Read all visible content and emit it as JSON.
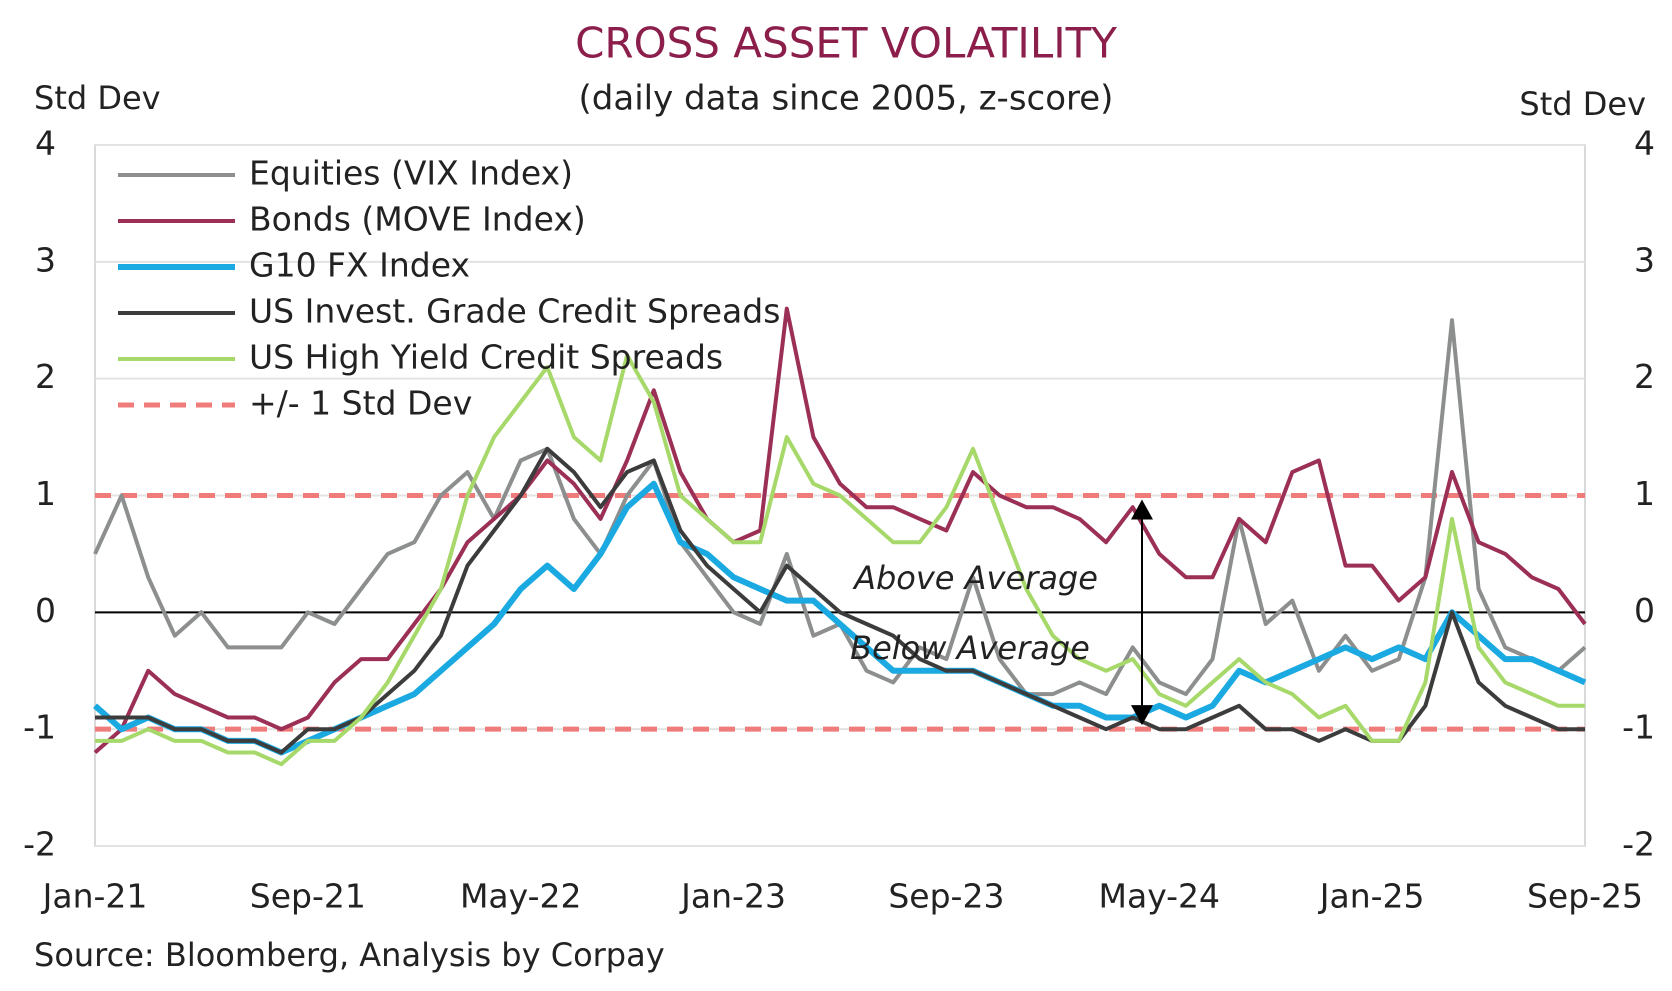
{
  "chart_data": {
    "type": "line",
    "title": "CROSS ASSET VOLATILITY",
    "subtitle": "(daily data since 2005, z-score)",
    "y_label": "Std Dev",
    "y2_label": "Std Dev",
    "source": "Source: Bloomberg, Analysis by Corpay",
    "annotations": [
      "Above Average",
      "Below Average"
    ],
    "categories": [
      "Jan-21",
      null,
      null,
      null,
      null,
      null,
      null,
      null,
      "Sep-21",
      null,
      null,
      null,
      null,
      null,
      null,
      null,
      "May-22",
      null,
      null,
      null,
      null,
      null,
      null,
      null,
      "Jan-23",
      null,
      null,
      null,
      null,
      null,
      null,
      null,
      "Sep-23",
      null,
      null,
      null,
      null,
      null,
      null,
      null,
      "May-24",
      null,
      null,
      null,
      null,
      null,
      null,
      null,
      "Jan-25",
      null,
      null,
      null,
      null,
      null,
      null,
      null,
      "Sep-25"
    ],
    "ylim": [
      -2,
      4
    ],
    "yticks": [
      -2,
      -1,
      0,
      1,
      2,
      3,
      4
    ],
    "y2lim": [
      -2,
      4
    ],
    "y2ticks": [
      -2,
      -1,
      0,
      1,
      2,
      3,
      4
    ],
    "grid": true,
    "legend": "top-left",
    "series": [
      {
        "name": "Equities (VIX Index)",
        "color": "#8c8f8e",
        "width": 4,
        "values": [
          0.5,
          1.0,
          0.3,
          -0.2,
          0,
          -0.3,
          -0.3,
          -0.3,
          0,
          -0.1,
          0.2,
          0.5,
          0.6,
          1.0,
          1.2,
          0.8,
          1.3,
          1.4,
          0.8,
          0.5,
          1.0,
          1.3,
          0.6,
          0.3,
          0.0,
          -0.1,
          0.5,
          -0.2,
          -0.1,
          -0.5,
          -0.6,
          -0.3,
          -0.4,
          0.3,
          -0.4,
          -0.7,
          -0.7,
          -0.6,
          -0.7,
          -0.3,
          -0.6,
          -0.7,
          -0.4,
          0.8,
          -0.1,
          0.1,
          -0.5,
          -0.2,
          -0.5,
          -0.4,
          0.3,
          2.5,
          0.2,
          -0.3,
          -0.4,
          -0.5,
          -0.3
        ]
      },
      {
        "name": "Bonds (MOVE Index)",
        "color": "#9b2f56",
        "width": 4,
        "values": [
          -1.2,
          -1.0,
          -0.5,
          -0.7,
          -0.8,
          -0.9,
          -0.9,
          -1.0,
          -0.9,
          -0.6,
          -0.4,
          -0.4,
          -0.1,
          0.2,
          0.6,
          0.8,
          1.0,
          1.3,
          1.1,
          0.8,
          1.3,
          1.9,
          1.2,
          0.8,
          0.6,
          0.7,
          2.6,
          1.5,
          1.1,
          0.9,
          0.9,
          0.8,
          0.7,
          1.2,
          1.0,
          0.9,
          0.9,
          0.8,
          0.6,
          0.9,
          0.5,
          0.3,
          0.3,
          0.8,
          0.6,
          1.2,
          1.3,
          0.4,
          0.4,
          0.1,
          0.3,
          1.2,
          0.6,
          0.5,
          0.3,
          0.2,
          -0.1
        ]
      },
      {
        "name": "G10 FX Index",
        "color": "#1aa9e0",
        "width": 6,
        "values": [
          -0.8,
          -1.0,
          -0.9,
          -1.0,
          -1.0,
          -1.1,
          -1.1,
          -1.2,
          -1.1,
          -1.0,
          -0.9,
          -0.8,
          -0.7,
          -0.5,
          -0.3,
          -0.1,
          0.2,
          0.4,
          0.2,
          0.5,
          0.9,
          1.1,
          0.6,
          0.5,
          0.3,
          0.2,
          0.1,
          0.1,
          -0.1,
          -0.3,
          -0.5,
          -0.5,
          -0.5,
          -0.5,
          -0.6,
          -0.7,
          -0.8,
          -0.8,
          -0.9,
          -0.9,
          -0.8,
          -0.9,
          -0.8,
          -0.5,
          -0.6,
          -0.5,
          -0.4,
          -0.3,
          -0.4,
          -0.3,
          -0.4,
          0.0,
          -0.2,
          -0.4,
          -0.4,
          -0.5,
          -0.6
        ]
      },
      {
        "name": "US Invest. Grade Credit Spreads",
        "color": "#3c3c3c",
        "width": 4,
        "values": [
          -0.9,
          -0.9,
          -0.9,
          -1.0,
          -1.0,
          -1.1,
          -1.1,
          -1.2,
          -1.0,
          -1.0,
          -0.9,
          -0.7,
          -0.5,
          -0.2,
          0.4,
          0.7,
          1.0,
          1.4,
          1.2,
          0.9,
          1.2,
          1.3,
          0.7,
          0.4,
          0.2,
          0.0,
          0.4,
          0.2,
          0.0,
          -0.1,
          -0.2,
          -0.4,
          -0.5,
          -0.5,
          -0.6,
          -0.7,
          -0.8,
          -0.9,
          -1.0,
          -0.9,
          -1.0,
          -1.0,
          -0.9,
          -0.8,
          -1.0,
          -1.0,
          -1.1,
          -1.0,
          -1.1,
          -1.1,
          -0.8,
          0.0,
          -0.6,
          -0.8,
          -0.9,
          -1.0,
          -1.0
        ]
      },
      {
        "name": "US High Yield Credit Spreads",
        "color": "#a6d96a",
        "width": 4,
        "values": [
          -1.1,
          -1.1,
          -1.0,
          -1.1,
          -1.1,
          -1.2,
          -1.2,
          -1.3,
          -1.1,
          -1.1,
          -0.9,
          -0.6,
          -0.2,
          0.2,
          1.0,
          1.5,
          1.8,
          2.1,
          1.5,
          1.3,
          2.2,
          1.8,
          1.0,
          0.8,
          0.6,
          0.6,
          1.5,
          1.1,
          1.0,
          0.8,
          0.6,
          0.6,
          0.9,
          1.4,
          0.8,
          0.2,
          -0.2,
          -0.4,
          -0.5,
          -0.4,
          -0.7,
          -0.8,
          -0.6,
          -0.4,
          -0.6,
          -0.7,
          -0.9,
          -0.8,
          -1.1,
          -1.1,
          -0.6,
          0.8,
          -0.3,
          -0.6,
          -0.7,
          -0.8,
          -0.8
        ]
      }
    ],
    "reference_lines": {
      "name": "+/- 1 Std Dev",
      "color": "#f07b7b",
      "values": [
        1,
        -1
      ]
    }
  }
}
